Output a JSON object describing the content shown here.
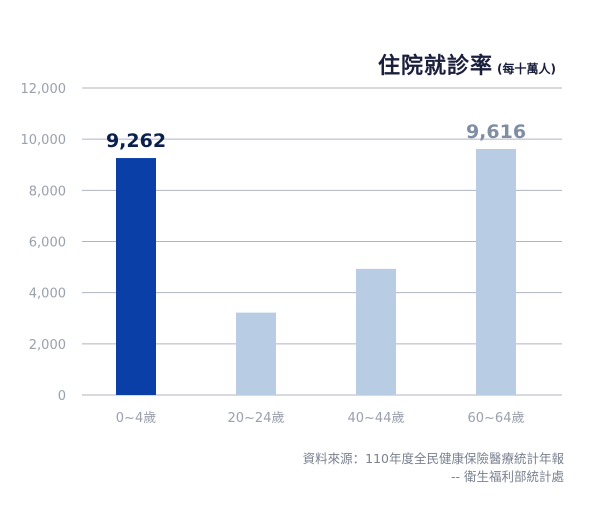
{
  "chart_data": {
    "type": "bar",
    "title": "住院就診率",
    "subtitle": "(每十萬人)",
    "categories": [
      "0~4歲",
      "20~24歲",
      "40~44歲",
      "60~64歲"
    ],
    "values": [
      9262,
      3220,
      4930,
      9616
    ],
    "data_labels": [
      "9,262",
      "",
      "",
      "9,616"
    ],
    "y_ticks": [
      "0",
      "2,000",
      "4,000",
      "6,000",
      "8,000",
      "10,000",
      "12,000"
    ],
    "ylim": [
      0,
      12000
    ],
    "grid": true,
    "colors": {
      "highlight": "#0a3fa8",
      "default": "#b8cce4",
      "label_highlight": "#0b1f4d",
      "label_default": "#7f8ea3",
      "grid": "#b0b4c0",
      "tick": "#9aa0ad"
    },
    "highlight_index": 0
  },
  "source": {
    "line1": "資料來源：110年度全民健康保險醫療統計年報",
    "line2": "-- 衛生福利部統計處"
  }
}
